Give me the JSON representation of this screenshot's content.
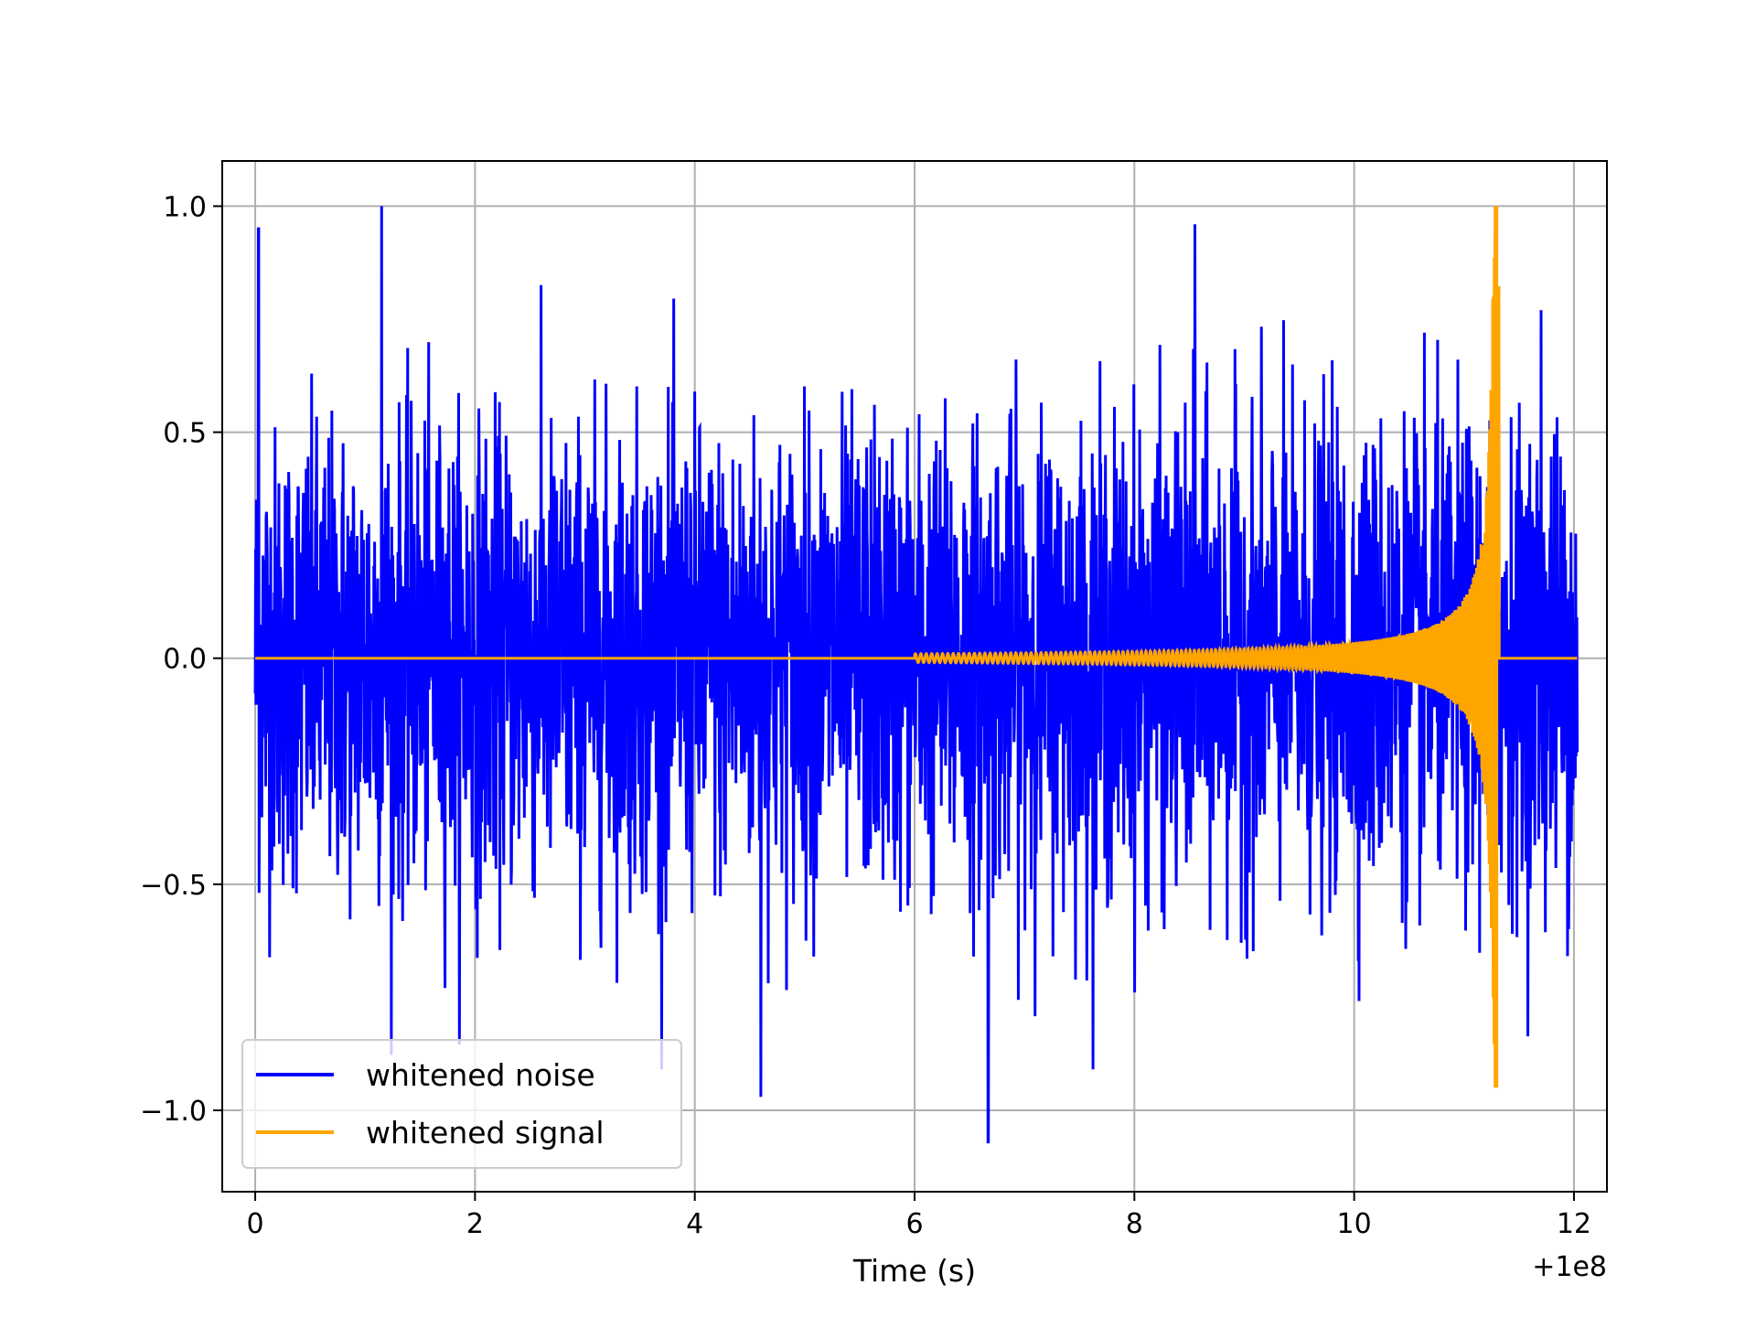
{
  "chart_data": {
    "type": "line",
    "title": "",
    "xlabel": "Time (s)",
    "ylabel": "",
    "x_offset_label": "+1e8",
    "xlim": [
      -0.3,
      12.3
    ],
    "ylim": [
      -1.18,
      1.1
    ],
    "xticks": [
      0,
      2,
      4,
      6,
      8,
      10,
      12
    ],
    "xtick_labels": [
      "0",
      "2",
      "4",
      "6",
      "8",
      "10",
      "12"
    ],
    "yticks": [
      1.0,
      0.5,
      0.0,
      -0.5,
      -1.0
    ],
    "ytick_labels": [
      "1.0",
      "0.5",
      "0.0",
      "−0.5",
      "−1.0"
    ],
    "grid": true,
    "legend_position": "lower-left",
    "series": [
      {
        "name": "whitened noise",
        "color": "#0000ff",
        "x_range": [
          0,
          12.03
        ],
        "envelope_typical": 0.6,
        "max": 1.0,
        "min": -1.07,
        "notable_points": [
          {
            "x": 0.03,
            "y": 0.95
          },
          {
            "x": 1.15,
            "y": 1.0
          },
          {
            "x": 4.6,
            "y": -0.97
          },
          {
            "x": 6.67,
            "y": -1.07
          },
          {
            "x": 8.55,
            "y": 0.96
          },
          {
            "x": 11.7,
            "y": 0.77
          }
        ]
      },
      {
        "name": "whitened signal",
        "color": "#ffa500",
        "x_range": [
          0,
          12.03
        ],
        "chirp_start": 6.0,
        "peak_time": 11.3,
        "peak_max": 1.0,
        "peak_min": -0.95,
        "baseline": 0.0
      }
    ]
  }
}
